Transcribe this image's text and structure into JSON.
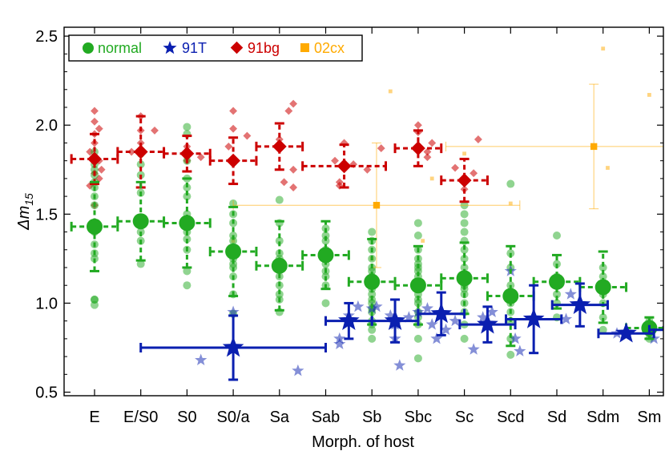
{
  "chart_data": {
    "type": "scatter",
    "xlabel": "Morph. of host",
    "ylabel": "Δm",
    "ylabel_sub": "15",
    "categories": [
      "E",
      "E/S0",
      "S0",
      "S0/a",
      "Sa",
      "Sab",
      "Sb",
      "Sbc",
      "Sc",
      "Scd",
      "Sd",
      "Sdm",
      "Sm"
    ],
    "ylim": [
      0.48,
      2.55
    ],
    "yticks": [
      0.5,
      1.0,
      1.5,
      2.0,
      2.5
    ],
    "yticklabels": [
      "0.5",
      "1.0",
      "1.5",
      "2.0",
      "2.5"
    ],
    "grid": false,
    "legend_position": "top-left",
    "legend": [
      {
        "label": "normal",
        "color": "#22aa22",
        "marker": "circle"
      },
      {
        "label": "91T",
        "color": "#0a1fb0",
        "marker": "star"
      },
      {
        "label": "91bg",
        "color": "#cc0000",
        "marker": "diamond"
      },
      {
        "label": "02cx",
        "color": "#ffaa00",
        "marker": "square"
      }
    ],
    "series": [
      {
        "name": "normal",
        "color": "#22aa22",
        "means": [
          {
            "x": 0,
            "y": 1.43,
            "xerr": 0.5,
            "yerr": 0.25
          },
          {
            "x": 1,
            "y": 1.46,
            "xerr": 0.5,
            "yerr": 0.22
          },
          {
            "x": 2,
            "y": 1.45,
            "xerr": 0.5,
            "yerr": 0.25
          },
          {
            "x": 3,
            "y": 1.29,
            "xerr": 0.5,
            "yerr": 0.25
          },
          {
            "x": 4,
            "y": 1.21,
            "xerr": 0.5,
            "yerr": 0.25
          },
          {
            "x": 5,
            "y": 1.27,
            "xerr": 0.5,
            "yerr": 0.19
          },
          {
            "x": 6,
            "y": 1.12,
            "xerr": 0.5,
            "yerr": 0.24
          },
          {
            "x": 7,
            "y": 1.1,
            "xerr": 0.5,
            "yerr": 0.22
          },
          {
            "x": 8,
            "y": 1.14,
            "xerr": 0.5,
            "yerr": 0.2
          },
          {
            "x": 9,
            "y": 1.04,
            "xerr": 0.5,
            "yerr": 0.28
          },
          {
            "x": 10,
            "y": 1.12,
            "xerr": 0.5,
            "yerr": 0.15
          },
          {
            "x": 11,
            "y": 1.09,
            "xerr": 0.5,
            "yerr": 0.2
          },
          {
            "x": 12,
            "y": 0.86,
            "xerr": 0.5,
            "yerr": 0.06
          }
        ],
        "points": [
          [
            0,
            0.99
          ],
          [
            0,
            1.02
          ],
          [
            0,
            1.25
          ],
          [
            0,
            1.33
          ],
          [
            0,
            1.43
          ],
          [
            0,
            1.45
          ],
          [
            0,
            1.55
          ],
          [
            0,
            1.6
          ],
          [
            0,
            1.65
          ],
          [
            0,
            1.68
          ],
          [
            0,
            1.72
          ],
          [
            0,
            1.75
          ],
          [
            0,
            1.78
          ],
          [
            0,
            1.85
          ],
          [
            0,
            1.4
          ],
          [
            0,
            1.28
          ],
          [
            0,
            1.02
          ],
          [
            1,
            1.22
          ],
          [
            1,
            1.35
          ],
          [
            1,
            1.48
          ],
          [
            1,
            1.62
          ],
          [
            1,
            1.72
          ],
          [
            1,
            1.78
          ],
          [
            1,
            1.84
          ],
          [
            1,
            1.4
          ],
          [
            2,
            1.1
          ],
          [
            2,
            1.18
          ],
          [
            2,
            1.3
          ],
          [
            2,
            1.4
          ],
          [
            2,
            1.5
          ],
          [
            2,
            1.6
          ],
          [
            2,
            1.7
          ],
          [
            2,
            1.8
          ],
          [
            2,
            1.95
          ],
          [
            2,
            1.99
          ],
          [
            2,
            1.65
          ],
          [
            2,
            1.36
          ],
          [
            3,
            0.94
          ],
          [
            3,
            1.05
          ],
          [
            3,
            1.15
          ],
          [
            3,
            1.22
          ],
          [
            3,
            1.3
          ],
          [
            3,
            1.38
          ],
          [
            3,
            1.45
          ],
          [
            3,
            1.5
          ],
          [
            3,
            1.56
          ],
          [
            3,
            1.35
          ],
          [
            3,
            1.25
          ],
          [
            3,
            1.2
          ],
          [
            4,
            0.95
          ],
          [
            4,
            1.02
          ],
          [
            4,
            1.1
          ],
          [
            4,
            1.15
          ],
          [
            4,
            1.2
          ],
          [
            4,
            1.28
          ],
          [
            4,
            1.35
          ],
          [
            4,
            1.45
          ],
          [
            4,
            1.58
          ],
          [
            4,
            1.25
          ],
          [
            4,
            1.05
          ],
          [
            5,
            1.0
          ],
          [
            5,
            1.1
          ],
          [
            5,
            1.18
          ],
          [
            5,
            1.25
          ],
          [
            5,
            1.3
          ],
          [
            5,
            1.38
          ],
          [
            5,
            1.42
          ],
          [
            5,
            1.35
          ],
          [
            5,
            1.22
          ],
          [
            5,
            1.15
          ],
          [
            6,
            0.8
          ],
          [
            6,
            0.85
          ],
          [
            6,
            0.9
          ],
          [
            6,
            0.95
          ],
          [
            6,
            1.0
          ],
          [
            6,
            1.05
          ],
          [
            6,
            1.1
          ],
          [
            6,
            1.15
          ],
          [
            6,
            1.2
          ],
          [
            6,
            1.25
          ],
          [
            6,
            1.3
          ],
          [
            6,
            1.35
          ],
          [
            6,
            1.4
          ],
          [
            6,
            1.02
          ],
          [
            6,
            0.97
          ],
          [
            6,
            1.12
          ],
          [
            6,
            1.18
          ],
          [
            6,
            0.88
          ],
          [
            6,
            1.08
          ],
          [
            7,
            0.69
          ],
          [
            7,
            0.8
          ],
          [
            7,
            0.88
          ],
          [
            7,
            0.95
          ],
          [
            7,
            1.0
          ],
          [
            7,
            1.05
          ],
          [
            7,
            1.1
          ],
          [
            7,
            1.15
          ],
          [
            7,
            1.2
          ],
          [
            7,
            1.25
          ],
          [
            7,
            1.3
          ],
          [
            7,
            1.38
          ],
          [
            7,
            1.45
          ],
          [
            7,
            1.02
          ],
          [
            7,
            0.92
          ],
          [
            7,
            1.12
          ],
          [
            7,
            1.18
          ],
          [
            7,
            1.22
          ],
          [
            8,
            0.8
          ],
          [
            8,
            0.88
          ],
          [
            8,
            0.95
          ],
          [
            8,
            1.0
          ],
          [
            8,
            1.05
          ],
          [
            8,
            1.1
          ],
          [
            8,
            1.15
          ],
          [
            8,
            1.2
          ],
          [
            8,
            1.25
          ],
          [
            8,
            1.3
          ],
          [
            8,
            1.35
          ],
          [
            8,
            1.4
          ],
          [
            8,
            1.45
          ],
          [
            8,
            1.5
          ],
          [
            8,
            1.55
          ],
          [
            8,
            1.12
          ],
          [
            8,
            1.08
          ],
          [
            9,
            0.71
          ],
          [
            9,
            0.8
          ],
          [
            9,
            0.9
          ],
          [
            9,
            0.95
          ],
          [
            9,
            1.0
          ],
          [
            9,
            1.05
          ],
          [
            9,
            1.2
          ],
          [
            9,
            1.28
          ],
          [
            9,
            1.67
          ],
          [
            9,
            1.1
          ],
          [
            10,
            0.92
          ],
          [
            10,
            1.0
          ],
          [
            10,
            1.05
          ],
          [
            10,
            1.1
          ],
          [
            10,
            1.15
          ],
          [
            10,
            1.22
          ],
          [
            10,
            1.38
          ],
          [
            11,
            0.85
          ],
          [
            11,
            0.92
          ],
          [
            11,
            1.0
          ],
          [
            11,
            1.05
          ],
          [
            11,
            1.1
          ],
          [
            11,
            1.15
          ],
          [
            11,
            1.2
          ],
          [
            12,
            0.8
          ],
          [
            12,
            0.83
          ],
          [
            12,
            0.86
          ],
          [
            12,
            0.88
          ],
          [
            12,
            0.9
          ]
        ]
      },
      {
        "name": "91T",
        "color": "#0a1fb0",
        "means": [
          {
            "x": 3,
            "y": 0.75,
            "xerr": 2.0,
            "yerr": 0.18
          },
          {
            "x": 5.5,
            "y": 0.9,
            "xerr": 0.5,
            "yerr": 0.1
          },
          {
            "x": 6.5,
            "y": 0.9,
            "xerr": 0.5,
            "yerr": 0.12
          },
          {
            "x": 7.5,
            "y": 0.94,
            "xerr": 0.5,
            "yerr": 0.12
          },
          {
            "x": 8.5,
            "y": 0.88,
            "xerr": 0.6,
            "yerr": 0.1
          },
          {
            "x": 9.5,
            "y": 0.91,
            "xerr": 0.6,
            "yerr": 0.19
          },
          {
            "x": 10.5,
            "y": 0.99,
            "xerr": 0.6,
            "yerr": 0.12
          },
          {
            "x": 11.5,
            "y": 0.83,
            "xerr": 0.6,
            "yerr": 0.01
          },
          {
            "x": 12.5,
            "y": 0.85,
            "xerr": 0.5,
            "yerr": 0.03
          }
        ],
        "points": [
          [
            2.3,
            0.68
          ],
          [
            3.0,
            0.95
          ],
          [
            4.4,
            0.62
          ],
          [
            5.3,
            0.8
          ],
          [
            5.3,
            0.77
          ],
          [
            5.5,
            0.93
          ],
          [
            5.7,
            0.98
          ],
          [
            6.0,
            0.97
          ],
          [
            6.1,
            0.98
          ],
          [
            6.4,
            0.93
          ],
          [
            6.5,
            0.88
          ],
          [
            6.5,
            0.8
          ],
          [
            6.6,
            0.65
          ],
          [
            6.8,
            0.92
          ],
          [
            7.0,
            0.95
          ],
          [
            7.2,
            0.97
          ],
          [
            7.3,
            0.88
          ],
          [
            7.4,
            0.8
          ],
          [
            7.6,
            0.85
          ],
          [
            7.8,
            0.9
          ],
          [
            8.2,
            0.74
          ],
          [
            8.4,
            0.92
          ],
          [
            8.6,
            0.95
          ],
          [
            9.0,
            1.18
          ],
          [
            9.1,
            0.8
          ],
          [
            9.2,
            0.73
          ],
          [
            10.2,
            0.91
          ],
          [
            10.3,
            1.05
          ],
          [
            11.3,
            0.83
          ],
          [
            12.1,
            0.8
          ],
          [
            12.5,
            0.8
          ]
        ]
      },
      {
        "name": "91bg",
        "color": "#cc0000",
        "means": [
          {
            "x": 0,
            "y": 1.81,
            "xerr": 0.5,
            "yerr": 0.14
          },
          {
            "x": 1,
            "y": 1.85,
            "xerr": 0.5,
            "yerr": 0.2
          },
          {
            "x": 2,
            "y": 1.84,
            "xerr": 0.5,
            "yerr": 0.1
          },
          {
            "x": 3,
            "y": 1.8,
            "xerr": 0.5,
            "yerr": 0.13
          },
          {
            "x": 4,
            "y": 1.88,
            "xerr": 0.5,
            "yerr": 0.13
          },
          {
            "x": 5.4,
            "y": 1.77,
            "xerr": 0.9,
            "yerr": 0.12
          },
          {
            "x": 7,
            "y": 1.87,
            "xerr": 0.5,
            "yerr": 0.1
          },
          {
            "x": 8,
            "y": 1.69,
            "xerr": 0.5,
            "yerr": 0.12
          }
        ],
        "points": [
          [
            -0.1,
            1.85
          ],
          [
            0,
            1.9
          ],
          [
            0,
            1.95
          ],
          [
            0,
            2.02
          ],
          [
            0,
            2.08
          ],
          [
            0.1,
            1.98
          ],
          [
            0,
            1.73
          ],
          [
            -0.1,
            1.66
          ],
          [
            0,
            1.55
          ],
          [
            0.1,
            1.7
          ],
          [
            0.15,
            1.75
          ],
          [
            0.1,
            1.8
          ],
          [
            1,
            1.9
          ],
          [
            1,
            1.97
          ],
          [
            1,
            2.05
          ],
          [
            1.3,
            1.97
          ],
          [
            0.8,
            1.85
          ],
          [
            2,
            1.88
          ],
          [
            2,
            1.8
          ],
          [
            2.3,
            1.82
          ],
          [
            3,
            2.08
          ],
          [
            3.3,
            1.94
          ],
          [
            3,
            1.98
          ],
          [
            2.9,
            1.88
          ],
          [
            4,
            1.92
          ],
          [
            4.2,
            2.08
          ],
          [
            4.3,
            2.12
          ],
          [
            4.1,
            1.68
          ],
          [
            4.3,
            1.65
          ],
          [
            4.3,
            1.75
          ],
          [
            5.2,
            1.8
          ],
          [
            5.3,
            1.66
          ],
          [
            5.3,
            1.68
          ],
          [
            5.4,
            1.9
          ],
          [
            5.6,
            1.78
          ],
          [
            5.9,
            1.75
          ],
          [
            6.2,
            1.87
          ],
          [
            7,
            1.96
          ],
          [
            7,
            2.0
          ],
          [
            7.2,
            1.82
          ],
          [
            7.3,
            1.9
          ],
          [
            7.2,
            1.85
          ],
          [
            8.3,
            1.92
          ],
          [
            7.8,
            1.76
          ],
          [
            8,
            1.64
          ],
          [
            8.2,
            1.73
          ]
        ]
      },
      {
        "name": "02cx",
        "color": "#ffaa00",
        "means": [
          {
            "x": 6.1,
            "y": 1.55,
            "xerr": 3.1,
            "yerr": 0.35
          },
          {
            "x": 10.8,
            "y": 1.88,
            "xerr": 3.2,
            "yerr": 0.35
          }
        ],
        "points": [
          [
            3.0,
            1.35
          ],
          [
            6.4,
            2.19
          ],
          [
            6.0,
            1.25
          ],
          [
            7.3,
            1.7
          ],
          [
            7.1,
            1.35
          ],
          [
            8.0,
            1.84
          ],
          [
            9.0,
            1.56
          ],
          [
            11.0,
            2.43
          ],
          [
            11.1,
            1.76
          ],
          [
            12.0,
            2.17
          ]
        ]
      }
    ]
  }
}
